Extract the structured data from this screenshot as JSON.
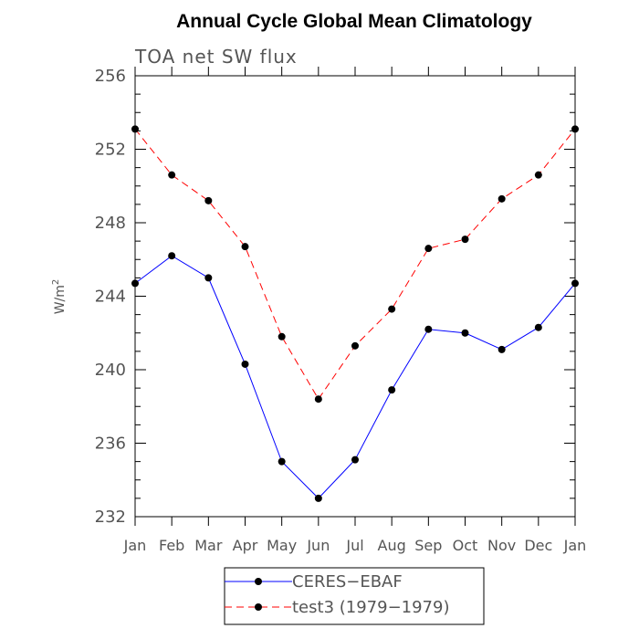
{
  "chart_data": {
    "type": "line",
    "title": "Annual Cycle Global Mean Climatology",
    "subtitle": "TOA net SW flux",
    "ylabel_base": "W/m",
    "ylabel_sup": "2",
    "xlabel": "",
    "categories": [
      "Jan",
      "Feb",
      "Mar",
      "Apr",
      "May",
      "Jun",
      "Jul",
      "Aug",
      "Sep",
      "Oct",
      "Nov",
      "Dec",
      "Jan"
    ],
    "ylim": [
      232,
      256
    ],
    "yticks": [
      232,
      236,
      240,
      244,
      248,
      252,
      256
    ],
    "series": [
      {
        "name": "CERES−EBAF",
        "color": "#0000ff",
        "dash": "solid",
        "values": [
          244.7,
          246.2,
          245.0,
          240.3,
          235.0,
          233.0,
          235.1,
          238.9,
          242.2,
          242.0,
          241.1,
          242.3,
          244.7
        ]
      },
      {
        "name": "test3 (1979−1979)",
        "color": "#ff0000",
        "dash": "dashed",
        "values": [
          253.1,
          250.6,
          249.2,
          246.7,
          241.8,
          238.4,
          241.3,
          243.3,
          246.6,
          247.1,
          249.3,
          250.6,
          253.1
        ]
      }
    ],
    "legend_position": "bottom"
  }
}
